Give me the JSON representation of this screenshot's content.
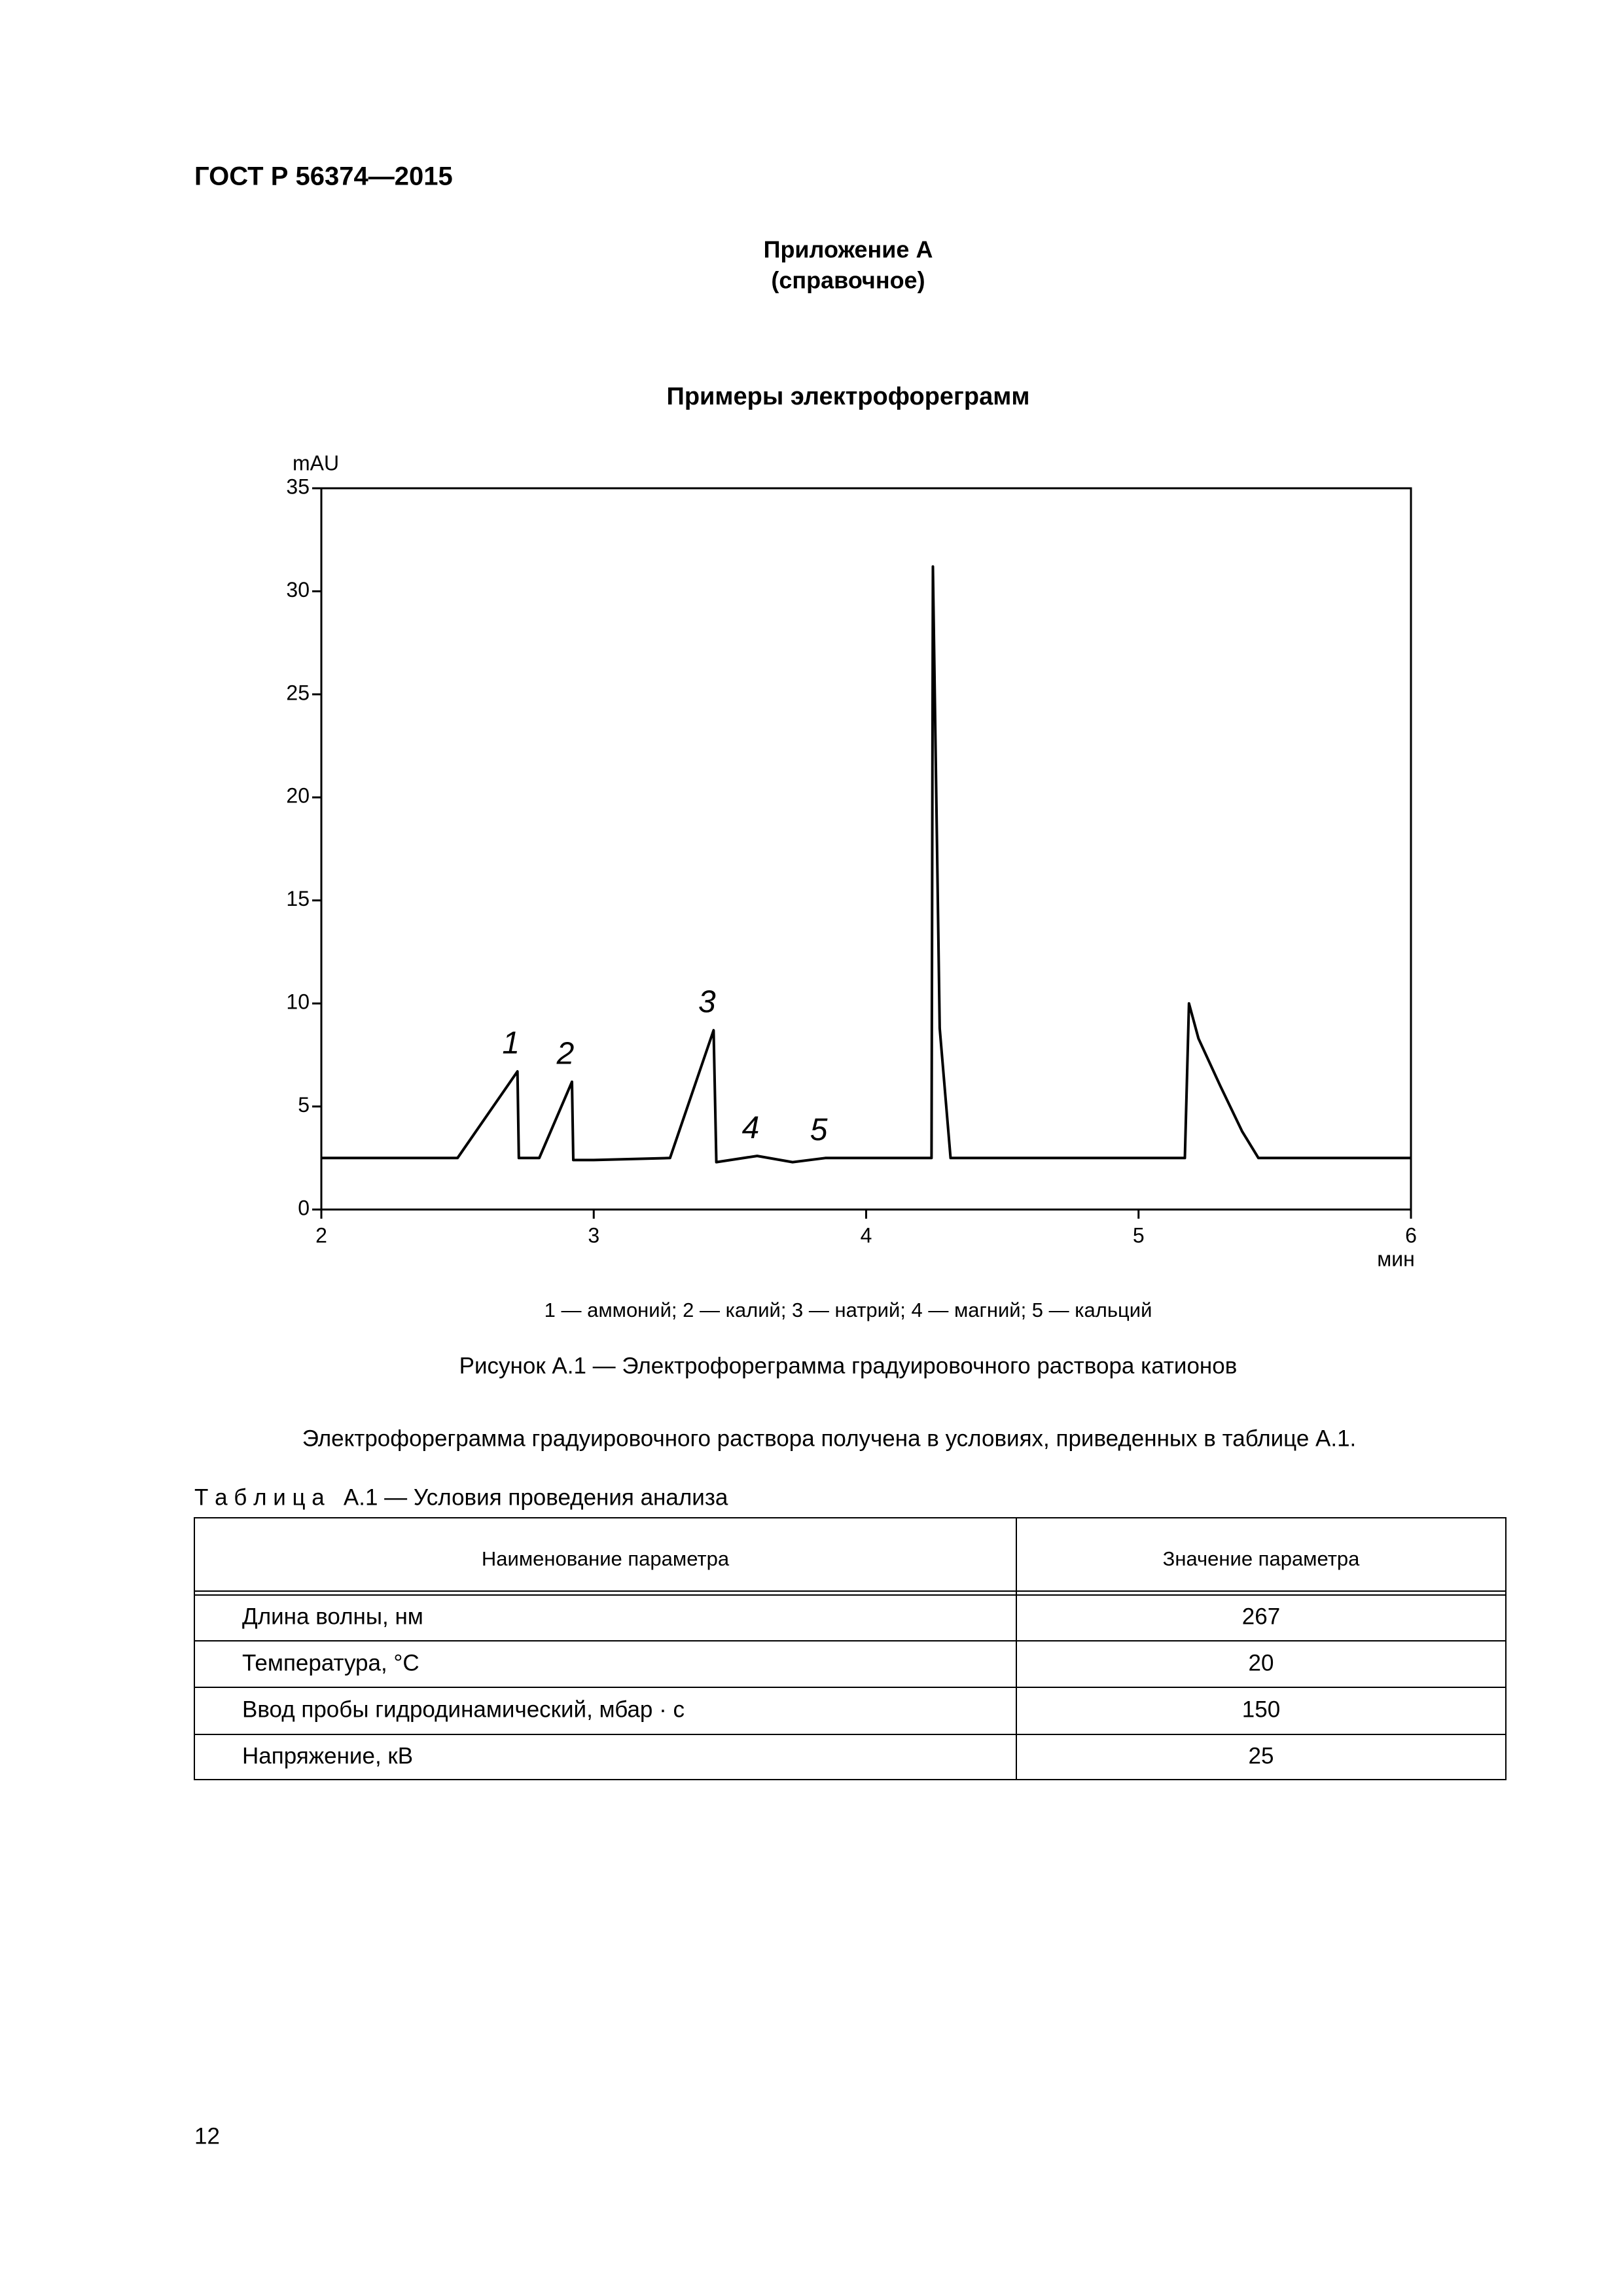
{
  "header": {
    "code": "ГОСТ Р 56374—2015"
  },
  "appendix": {
    "title": "Приложение А",
    "note": "(справочное)",
    "heading": "Примеры электрофореграмм"
  },
  "chart_data": {
    "type": "line",
    "ylabel": "mAU",
    "xlabel": "мин",
    "x": [
      2,
      2.5,
      2.72,
      2.725,
      2.78,
      2.8,
      2.92,
      2.925,
      3.0,
      3.28,
      3.44,
      3.45,
      3.6,
      3.73,
      3.85,
      4.24,
      4.245,
      4.27,
      4.31,
      5.17,
      5.185,
      5.22,
      5.3,
      5.38,
      5.44,
      6
    ],
    "values": [
      2.5,
      2.5,
      6.7,
      2.5,
      2.5,
      2.5,
      6.2,
      2.4,
      2.4,
      2.5,
      8.7,
      2.3,
      2.6,
      2.3,
      2.5,
      2.5,
      31.2,
      8.8,
      2.5,
      2.5,
      10.0,
      8.3,
      6.0,
      3.8,
      2.5,
      2.5
    ],
    "color": "#000000",
    "xlim": [
      2,
      6
    ],
    "xticks": [
      2,
      3,
      4,
      5,
      6
    ],
    "ylim": [
      0,
      35
    ],
    "yticks": [
      0,
      5,
      10,
      15,
      20,
      25,
      30,
      35
    ],
    "peak_labels": [
      "1",
      "2",
      "3",
      "4",
      "5"
    ]
  },
  "figure": {
    "legend": "1 — аммоний; 2 — калий; 3 — натрий; 4 — магний; 5 — кальций",
    "caption": "Рисунок А.1 — Электрофореграмма градуировочного раствора катионов"
  },
  "paragraph": "Электрофореграмма градуировочного раствора получена в условиях, приведенных в таблице А.1.",
  "table": {
    "caption": "Т а б л и ц а   А.1 — Условия проведения анализа",
    "header": [
      "Наименование параметра",
      "Значение параметра"
    ],
    "rows": [
      [
        "Длина волны, нм",
        "267"
      ],
      [
        "Температура, °С",
        "20"
      ],
      [
        "Ввод пробы гидродинамический, мбар · с",
        "150"
      ],
      [
        "Напряжение, кВ",
        "25"
      ]
    ]
  },
  "footer": {
    "page": "12"
  }
}
